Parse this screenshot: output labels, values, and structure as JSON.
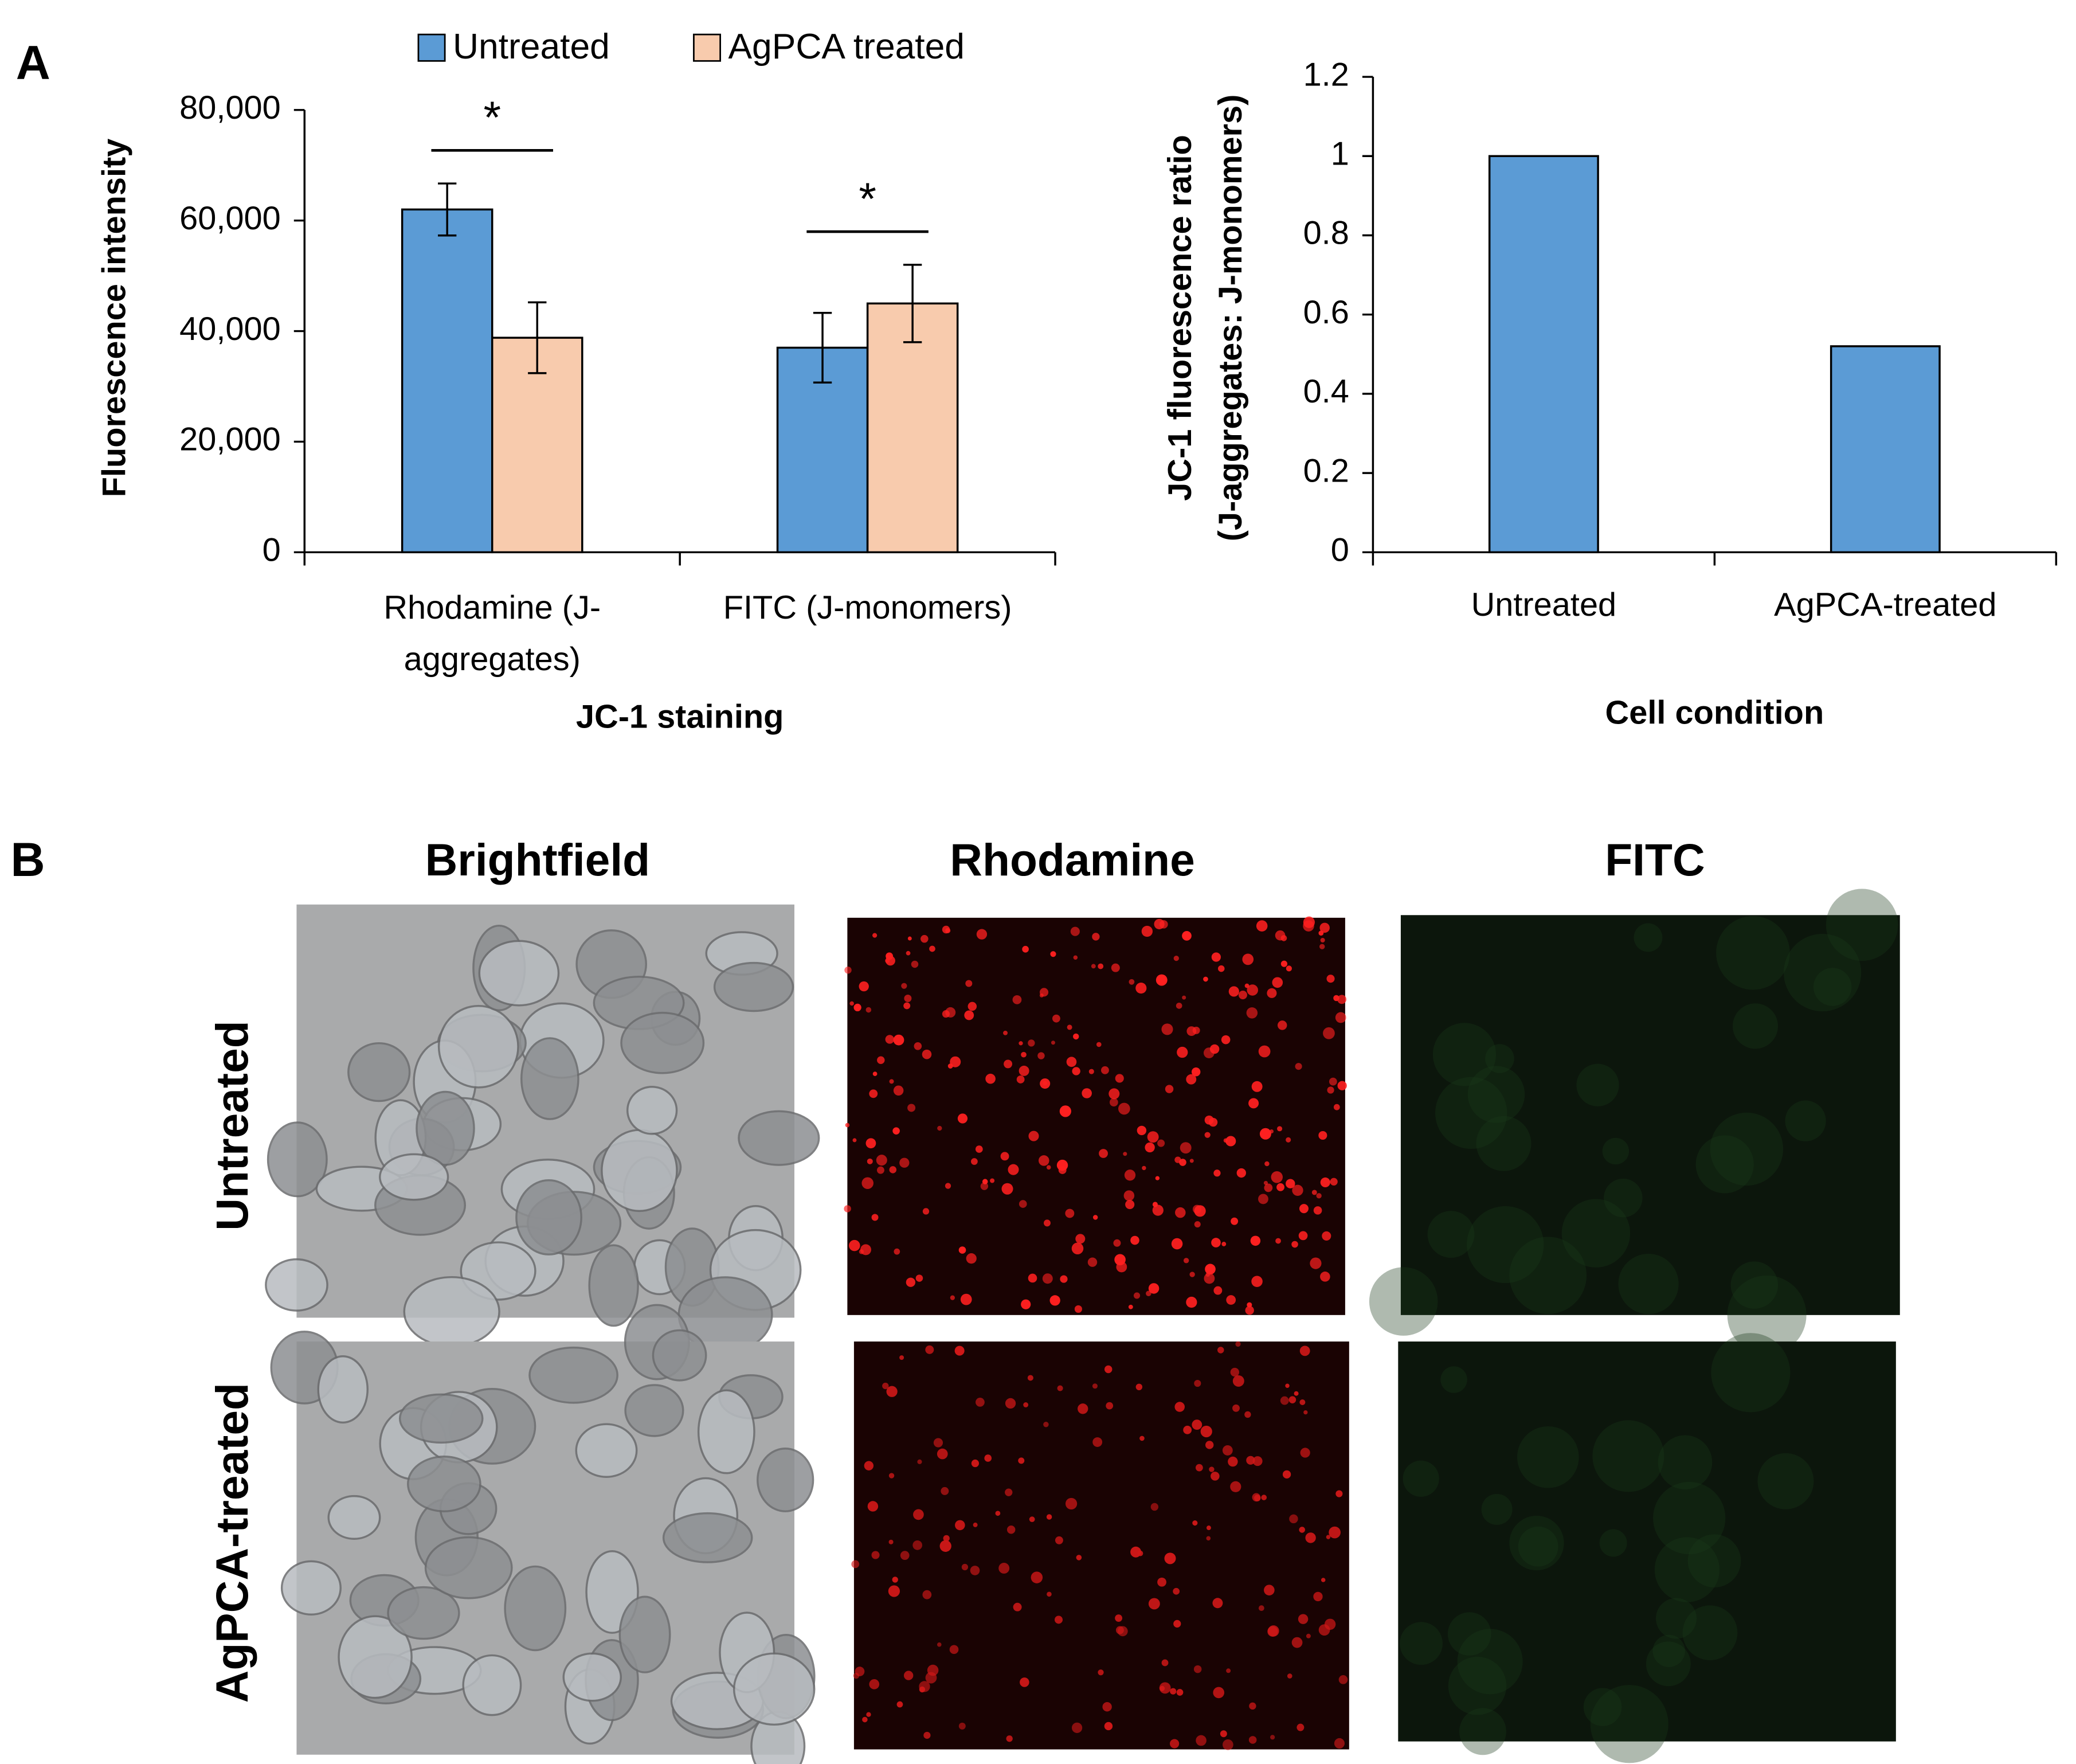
{
  "panel_labels": [
    "A",
    "B"
  ],
  "chart_data": [
    {
      "type": "bar",
      "xlabel": "JC-1 staining",
      "ylabel": [
        "Fluorescence intensity"
      ],
      "categories": [
        "Rhodamine (J-aggregates)",
        "FITC (J-monomers)"
      ],
      "series": [
        {
          "name": "Untreated",
          "color": "#5b9bd5",
          "values": [
            62000,
            37000
          ],
          "errors": [
            4700,
            6300
          ]
        },
        {
          "name": "AgPCA treated",
          "color": "#f8cbad",
          "values": [
            38800,
            45000
          ],
          "errors": [
            6400,
            7000
          ]
        }
      ],
      "annotations": [
        "*",
        "*"
      ],
      "ylim": [
        0,
        80000
      ],
      "yticks": [
        0,
        {
          "value": 20000,
          "label": "20,000"
        },
        {
          "value": 40000,
          "label": "40,000"
        },
        {
          "value": 60000,
          "label": "60,000"
        },
        {
          "value": 80000,
          "label": "80,000"
        }
      ],
      "legend": "top"
    },
    {
      "type": "bar",
      "xlabel": "Cell condition",
      "ylabel": [
        "JC-1 fluorescence ratio",
        "(J-aggregates: J-monomers)"
      ],
      "categories": [
        "Untreated",
        "AgPCA-treated"
      ],
      "series": [
        {
          "color": "#5b9bd5",
          "values": [
            1,
            0.52
          ]
        }
      ],
      "ylim": [
        0,
        1.2
      ],
      "yticks": [
        0,
        0.2,
        0.4,
        0.6,
        0.8,
        1,
        1.2
      ]
    }
  ],
  "micrographs": {
    "columns": [
      "Brightfield",
      "Rhodamine",
      "FITC"
    ],
    "rows": [
      "Untreated",
      "AgPCA-treated"
    ]
  }
}
